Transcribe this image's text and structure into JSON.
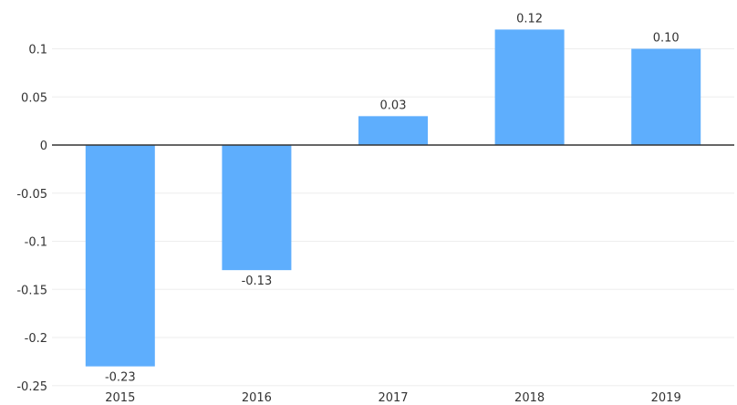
{
  "chart_data": {
    "type": "bar",
    "title": "",
    "xlabel": "",
    "ylabel": "",
    "categories": [
      "2015",
      "2016",
      "2017",
      "2018",
      "2019"
    ],
    "values": [
      -0.23,
      -0.13,
      0.03,
      0.12,
      0.1
    ],
    "data_labels": [
      "-0.23",
      "-0.13",
      "0.03",
      "0.12",
      "0.10"
    ],
    "ylim": [
      -0.25,
      0.14
    ],
    "yticks": [
      -0.25,
      -0.2,
      -0.15,
      -0.1,
      -0.05,
      0,
      0.05,
      0.1
    ],
    "ytick_labels": [
      "-0.25",
      "-0.2",
      "-0.15",
      "-0.1",
      "-0.05",
      "0",
      "0.05",
      "0.1"
    ],
    "grid": true,
    "legend": "none",
    "colors": {
      "bar": "#5eaefd",
      "zero_line": "#333333",
      "grid": "#eeeeee",
      "text": "#333333"
    }
  }
}
